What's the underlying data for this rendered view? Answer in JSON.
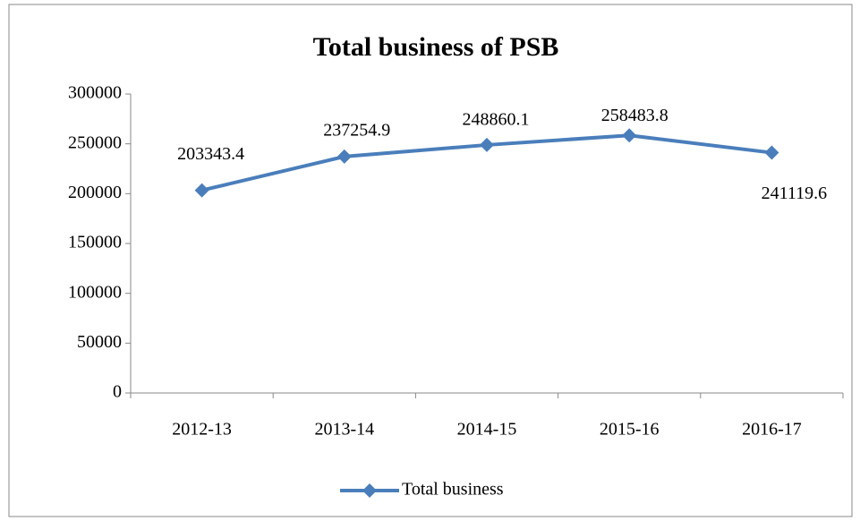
{
  "chart_data": {
    "type": "line",
    "title": "Total business of PSB",
    "categories": [
      "2012-13",
      "2013-14",
      "2014-15",
      "2015-16",
      "2016-17"
    ],
    "series": [
      {
        "name": "Total business",
        "color": "#4a7ebb",
        "values": [
          203343.4,
          237254.9,
          248860.1,
          258483.8,
          241119.6
        ]
      }
    ],
    "ylim": [
      0,
      300000
    ],
    "yticks": [
      0,
      50000,
      100000,
      150000,
      200000,
      250000,
      300000
    ],
    "grid": false,
    "legend": "bottom",
    "data_labels": true
  }
}
